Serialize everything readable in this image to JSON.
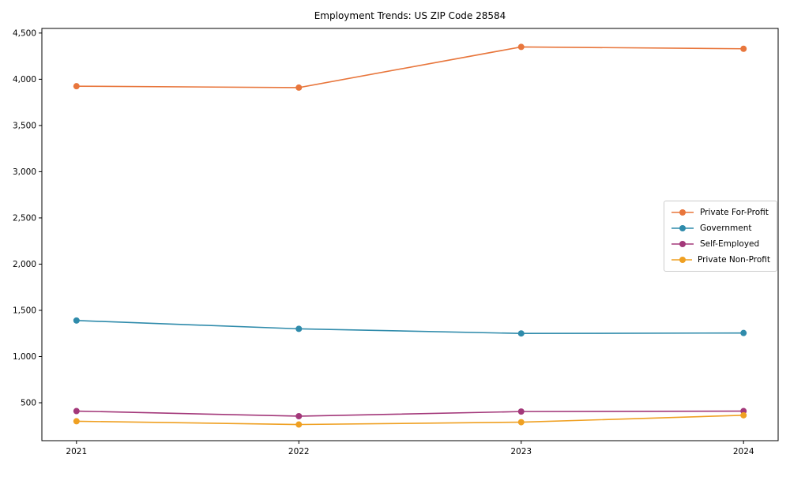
{
  "chart_data": {
    "type": "line",
    "title": "Employment Trends: US ZIP Code 28584",
    "xlabel": "",
    "ylabel": "",
    "x": [
      "2021",
      "2022",
      "2023",
      "2024"
    ],
    "series": [
      {
        "name": "Private For-Profit",
        "color": "#e8763c",
        "values": [
          3925,
          3910,
          4350,
          4330
        ]
      },
      {
        "name": "Government",
        "color": "#2f8bab",
        "values": [
          1390,
          1300,
          1250,
          1255
        ]
      },
      {
        "name": "Self-Employed",
        "color": "#a3387a",
        "values": [
          410,
          355,
          405,
          410
        ]
      },
      {
        "name": "Private Non-Profit",
        "color": "#efa022",
        "values": [
          300,
          265,
          290,
          365
        ]
      }
    ],
    "yticks": [
      500,
      1000,
      1500,
      2000,
      2500,
      3000,
      3500,
      4000,
      4500
    ],
    "ylim": [
      90,
      4550
    ],
    "grid": false,
    "legend_position": "center-right",
    "marker": "circle"
  }
}
